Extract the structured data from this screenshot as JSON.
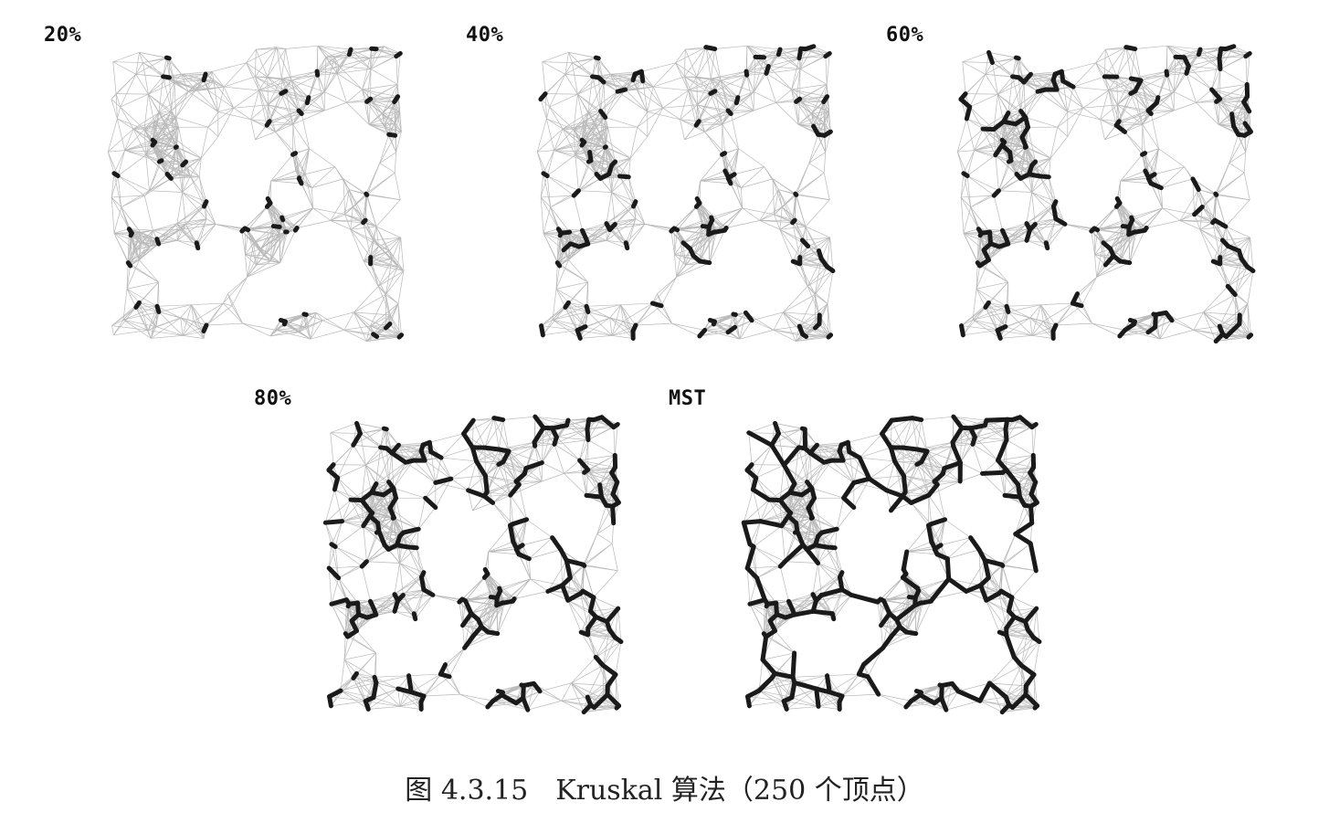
{
  "caption": "图 4.3.15　Kruskal 算法（250 个顶点）",
  "colors": {
    "graph_edge": "#b9b9b9",
    "dense_fill": "#cfcfcf",
    "mst_edge": "#1a1a1a"
  },
  "panels": [
    {
      "id": "p20",
      "label": "20%",
      "progress": 0.2
    },
    {
      "id": "p40",
      "label": "40%",
      "progress": 0.4
    },
    {
      "id": "p60",
      "label": "60%",
      "progress": 0.6
    },
    {
      "id": "p80",
      "label": "80%",
      "progress": 0.8
    },
    {
      "id": "pmst",
      "label": "MST",
      "progress": 1.0
    }
  ]
}
